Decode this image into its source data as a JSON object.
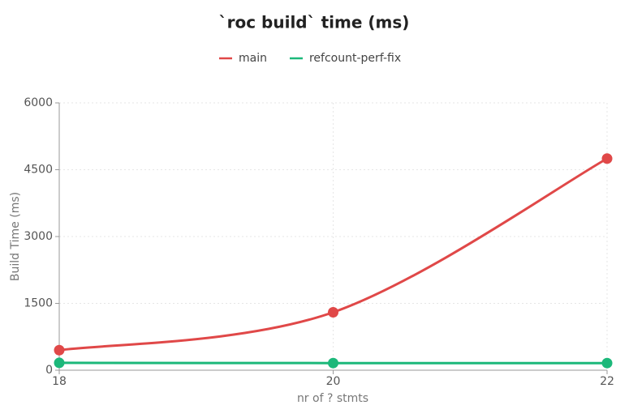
{
  "chart_data": {
    "type": "line",
    "title": "`roc build` time (ms)",
    "x_label": "nr of ? stmts",
    "y_label": "Build Time (ms)",
    "x": [
      18,
      20,
      22
    ],
    "series": [
      {
        "name": "main",
        "color": "#e04848",
        "values": [
          450,
          1300,
          4750
        ]
      },
      {
        "name": "refcount-perf-fix",
        "color": "#1cb87a",
        "values": [
          165,
          160,
          160
        ]
      }
    ],
    "xlim": [
      18,
      22
    ],
    "xticks": [
      18,
      20,
      22
    ],
    "ylim": [
      0,
      6000
    ],
    "yticks": [
      0,
      1500,
      3000,
      4500,
      6000
    ],
    "grid": true,
    "legend": "top"
  }
}
